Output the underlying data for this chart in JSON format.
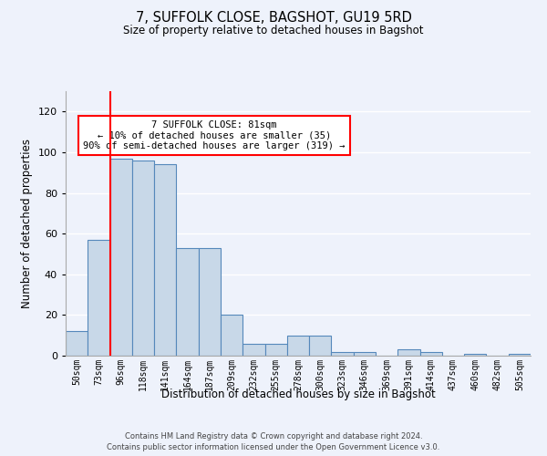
{
  "title": "7, SUFFOLK CLOSE, BAGSHOT, GU19 5RD",
  "subtitle": "Size of property relative to detached houses in Bagshot",
  "xlabel": "Distribution of detached houses by size in Bagshot",
  "ylabel": "Number of detached properties",
  "bar_values": [
    12,
    57,
    97,
    96,
    94,
    53,
    53,
    20,
    6,
    6,
    10,
    10,
    2,
    2,
    0,
    3,
    2,
    0,
    1,
    0,
    1
  ],
  "bar_labels": [
    "50sqm",
    "73sqm",
    "96sqm",
    "118sqm",
    "141sqm",
    "164sqm",
    "187sqm",
    "209sqm",
    "232sqm",
    "255sqm",
    "278sqm",
    "300sqm",
    "323sqm",
    "346sqm",
    "369sqm",
    "391sqm",
    "414sqm",
    "437sqm",
    "460sqm",
    "482sqm",
    "505sqm"
  ],
  "bar_color": "#c8d8e8",
  "bar_edge_color": "#5588bb",
  "ylim": [
    0,
    130
  ],
  "yticks": [
    0,
    20,
    40,
    60,
    80,
    100,
    120
  ],
  "red_line_x": 1.5,
  "annotation_text": "7 SUFFOLK CLOSE: 81sqm\n← 10% of detached houses are smaller (35)\n90% of semi-detached houses are larger (319) →",
  "annotation_box_color": "white",
  "annotation_box_edge": "red",
  "footer": "Contains HM Land Registry data © Crown copyright and database right 2024.\nContains public sector information licensed under the Open Government Licence v3.0.",
  "bg_color": "#eef2fb",
  "grid_color": "#ffffff"
}
